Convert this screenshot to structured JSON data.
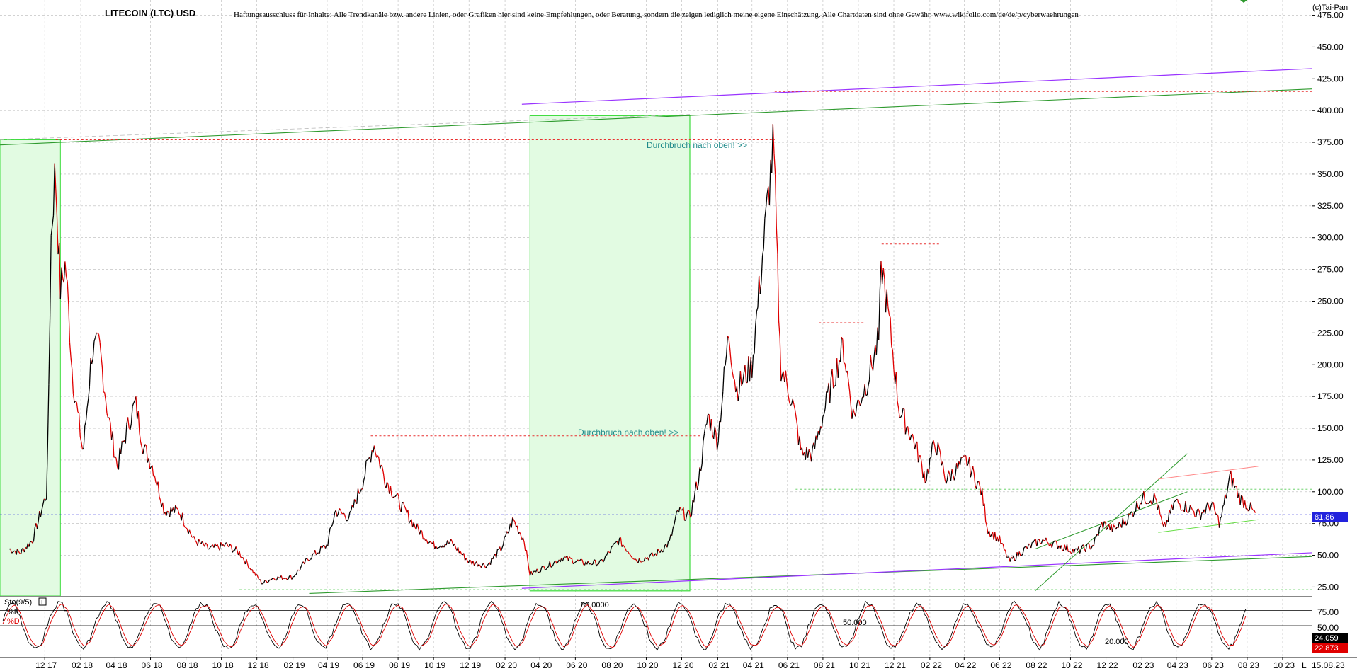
{
  "header": {
    "title": "LITECOIN (LTC) USD",
    "disclaimer": "Haftungsausschluss für Inhalte: Alle Trendkanäle bzw. andere Linien, oder Grafiken hier sind keine Empfehlungen, oder Beratung, sondern die zeigen lediglich meine eigene Einschätzung. Alle Chartdaten sind ohne Gewähr.  www.wikifolio.com/de/de/p/cyberwaehrungen",
    "copyright": "(c)Tai-Pan",
    "date": "15.08.23",
    "corner_letter": "L"
  },
  "colors": {
    "price_up": "#000000",
    "price_down": "#e00000",
    "trend_green": "#2e9a2e",
    "trend_purple": "#9933ff",
    "resistance_red": "#e83030",
    "last_price_blue": "#2222dd",
    "box_fill": "#e2fbe2",
    "box_border": "#3ddc3d",
    "annotation": "#1f8a8a",
    "stoch_k": "#000000",
    "stoch_d": "#e00000"
  },
  "annotations": {
    "breakout_1": "Durchbruch nach oben! >>",
    "breakout_2": "Durchbruch nach oben! >>"
  },
  "stochastic": {
    "label": "Sto(9/5)",
    "plus": "+",
    "k_label": "%K",
    "d_label": "%D",
    "level_80": "80.0000",
    "level_50": "50.000",
    "level_20": "20.000",
    "ticks": [
      "75.00",
      "50.00",
      "25.00"
    ],
    "k_value": "24.059",
    "d_value": "22.873"
  },
  "chart_data": {
    "type": "line",
    "title": "LITECOIN (LTC) USD",
    "xlabel": "",
    "ylabel": "",
    "ylim": [
      18,
      487
    ],
    "y_ticks": [
      25,
      50,
      75,
      100,
      125,
      150,
      175,
      200,
      225,
      250,
      275,
      300,
      325,
      350,
      375,
      400,
      425,
      450,
      475
    ],
    "y_tick_labels": [
      "25.00",
      "50.00",
      "75.00",
      "100.00",
      "125.00",
      "150.00",
      "175.00",
      "200.00",
      "225.00",
      "250.00",
      "275.00",
      "300.00",
      "325.00",
      "350.00",
      "375.00",
      "400.00",
      "425.00",
      "450.00",
      "475.00"
    ],
    "x_tick_labels": [
      "12 17",
      "02 18",
      "04 18",
      "06 18",
      "08 18",
      "10 18",
      "12 18",
      "02 19",
      "04 19",
      "06 19",
      "08 19",
      "10 19",
      "12 19",
      "02 20",
      "04 20",
      "06 20",
      "08 20",
      "10 20",
      "12 20",
      "02 21",
      "04 21",
      "06 21",
      "08 21",
      "10 21",
      "12 21",
      "02 22",
      "04 22",
      "06 22",
      "08 22",
      "10 22",
      "12 22",
      "02 23",
      "04 23",
      "06 23",
      "08 23",
      "10 23"
    ],
    "grid": true,
    "last_price": 81.86,
    "last_price_label": "81.86",
    "series": [
      {
        "values": [
          [
            "2017-10-01",
            55
          ],
          [
            "2017-10-20",
            52
          ],
          [
            "2017-11-10",
            62
          ],
          [
            "2017-11-25",
            85
          ],
          [
            "2017-12-05",
            100
          ],
          [
            "2017-12-12",
            300
          ],
          [
            "2017-12-19",
            355
          ],
          [
            "2017-12-28",
            260
          ],
          [
            "2018-01-06",
            280
          ],
          [
            "2018-01-18",
            190
          ],
          [
            "2018-02-05",
            130
          ],
          [
            "2018-02-20",
            210
          ],
          [
            "2018-03-05",
            215
          ],
          [
            "2018-03-20",
            160
          ],
          [
            "2018-04-05",
            120
          ],
          [
            "2018-04-25",
            155
          ],
          [
            "2018-05-06",
            170
          ],
          [
            "2018-05-20",
            135
          ],
          [
            "2018-06-05",
            120
          ],
          [
            "2018-06-25",
            85
          ],
          [
            "2018-07-20",
            85
          ],
          [
            "2018-08-15",
            62
          ],
          [
            "2018-09-10",
            55
          ],
          [
            "2018-10-10",
            58
          ],
          [
            "2018-11-01",
            52
          ],
          [
            "2018-11-20",
            40
          ],
          [
            "2018-12-10",
            28
          ],
          [
            "2018-12-28",
            32
          ],
          [
            "2019-02-01",
            33
          ],
          [
            "2019-03-01",
            48
          ],
          [
            "2019-04-01",
            58
          ],
          [
            "2019-04-15",
            85
          ],
          [
            "2019-05-10",
            80
          ],
          [
            "2019-06-01",
            108
          ],
          [
            "2019-06-20",
            138
          ],
          [
            "2019-07-10",
            110
          ],
          [
            "2019-08-05",
            90
          ],
          [
            "2019-09-01",
            72
          ],
          [
            "2019-10-01",
            58
          ],
          [
            "2019-11-01",
            60
          ],
          [
            "2019-12-01",
            45
          ],
          [
            "2020-01-01",
            42
          ],
          [
            "2020-01-25",
            55
          ],
          [
            "2020-02-15",
            78
          ],
          [
            "2020-03-05",
            62
          ],
          [
            "2020-03-15",
            35
          ],
          [
            "2020-04-15",
            42
          ],
          [
            "2020-05-10",
            48
          ],
          [
            "2020-06-15",
            44
          ],
          [
            "2020-07-15",
            44
          ],
          [
            "2020-08-15",
            62
          ],
          [
            "2020-09-15",
            46
          ],
          [
            "2020-10-15",
            50
          ],
          [
            "2020-11-10",
            60
          ],
          [
            "2020-11-25",
            85
          ],
          [
            "2020-12-15",
            80
          ],
          [
            "2021-01-01",
            115
          ],
          [
            "2021-01-15",
            160
          ],
          [
            "2021-02-01",
            140
          ],
          [
            "2021-02-20",
            225
          ],
          [
            "2021-03-05",
            180
          ],
          [
            "2021-04-01",
            200
          ],
          [
            "2021-04-20",
            290
          ],
          [
            "2021-05-08",
            375
          ],
          [
            "2021-05-20",
            200
          ],
          [
            "2021-06-10",
            170
          ],
          [
            "2021-06-25",
            130
          ],
          [
            "2021-07-15",
            130
          ],
          [
            "2021-08-10",
            175
          ],
          [
            "2021-09-05",
            215
          ],
          [
            "2021-09-22",
            160
          ],
          [
            "2021-10-15",
            185
          ],
          [
            "2021-11-05",
            220
          ],
          [
            "2021-11-10",
            280
          ],
          [
            "2021-11-28",
            215
          ],
          [
            "2021-12-10",
            165
          ],
          [
            "2022-01-05",
            140
          ],
          [
            "2022-01-25",
            110
          ],
          [
            "2022-02-10",
            140
          ],
          [
            "2022-03-01",
            110
          ],
          [
            "2022-03-25",
            120
          ],
          [
            "2022-04-05",
            125
          ],
          [
            "2022-05-01",
            100
          ],
          [
            "2022-05-12",
            70
          ],
          [
            "2022-06-01",
            62
          ],
          [
            "2022-06-18",
            45
          ],
          [
            "2022-07-15",
            55
          ],
          [
            "2022-08-12",
            62
          ],
          [
            "2022-09-10",
            58
          ],
          [
            "2022-10-10",
            53
          ],
          [
            "2022-11-09",
            58
          ],
          [
            "2022-11-25",
            75
          ],
          [
            "2022-12-15",
            70
          ],
          [
            "2023-01-10",
            80
          ],
          [
            "2023-02-01",
            95
          ],
          [
            "2023-02-25",
            95
          ],
          [
            "2023-03-10",
            70
          ],
          [
            "2023-03-30",
            92
          ],
          [
            "2023-04-20",
            88
          ],
          [
            "2023-05-10",
            82
          ],
          [
            "2023-06-01",
            90
          ],
          [
            "2023-06-15",
            75
          ],
          [
            "2023-07-03",
            112
          ],
          [
            "2023-07-20",
            95
          ],
          [
            "2023-08-05",
            88
          ],
          [
            "2023-08-15",
            81.86
          ]
        ]
      }
    ]
  }
}
